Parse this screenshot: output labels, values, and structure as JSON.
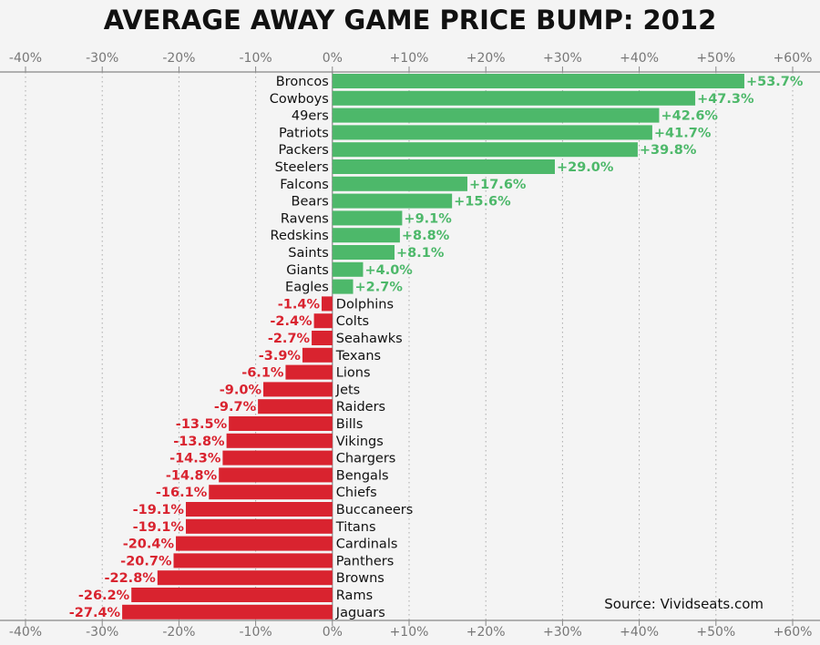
{
  "chart_data": {
    "type": "bar",
    "orientation": "horizontal",
    "title": "AVERAGE AWAY GAME PRICE BUMP: 2012",
    "source": "Source: Vividseats.com",
    "xlim": [
      -40,
      60
    ],
    "xticks": [
      -40,
      -30,
      -20,
      -10,
      0,
      10,
      20,
      30,
      40,
      50,
      60
    ],
    "xtick_labels": [
      "-40%",
      "-30%",
      "-20%",
      "-10%",
      "0%",
      "+10%",
      "+20%",
      "+30%",
      "+40%",
      "+50%",
      "+60%"
    ],
    "grid": true,
    "colors": {
      "positive": "#4db86a",
      "negative": "#d9232f",
      "text": "#111111",
      "axis": "#888888",
      "grid": "#aaaaaa"
    },
    "categories": [
      "Broncos",
      "Cowboys",
      "49ers",
      "Patriots",
      "Packers",
      "Steelers",
      "Falcons",
      "Bears",
      "Ravens",
      "Redskins",
      "Saints",
      "Giants",
      "Eagles",
      "Dolphins",
      "Colts",
      "Seahawks",
      "Texans",
      "Lions",
      "Jets",
      "Raiders",
      "Bills",
      "Vikings",
      "Chargers",
      "Bengals",
      "Chiefs",
      "Buccaneers",
      "Titans",
      "Cardinals",
      "Panthers",
      "Browns",
      "Rams",
      "Jaguars"
    ],
    "values": [
      53.7,
      47.3,
      42.6,
      41.7,
      39.8,
      29.0,
      17.6,
      15.6,
      9.1,
      8.8,
      8.1,
      4.0,
      2.7,
      -1.4,
      -2.4,
      -2.7,
      -3.9,
      -6.1,
      -9.0,
      -9.7,
      -13.5,
      -13.8,
      -14.3,
      -14.8,
      -16.1,
      -19.1,
      -19.1,
      -20.4,
      -20.7,
      -22.8,
      -26.2,
      -27.4
    ],
    "value_labels": [
      "+53.7%",
      "+47.3%",
      "+42.6%",
      "+41.7%",
      "+39.8%",
      "+29.0%",
      "+17.6%",
      "+15.6%",
      "+9.1%",
      "+8.8%",
      "+8.1%",
      "+4.0%",
      "+2.7%",
      "-1.4%",
      "-2.4%",
      "-2.7%",
      "-3.9%",
      "-6.1%",
      "-9.0%",
      "-9.7%",
      "-13.5%",
      "-13.8%",
      "-14.3%",
      "-14.8%",
      "-16.1%",
      "-19.1%",
      "-19.1%",
      "-20.4%",
      "-20.7%",
      "-22.8%",
      "-26.2%",
      "-27.4%"
    ]
  }
}
